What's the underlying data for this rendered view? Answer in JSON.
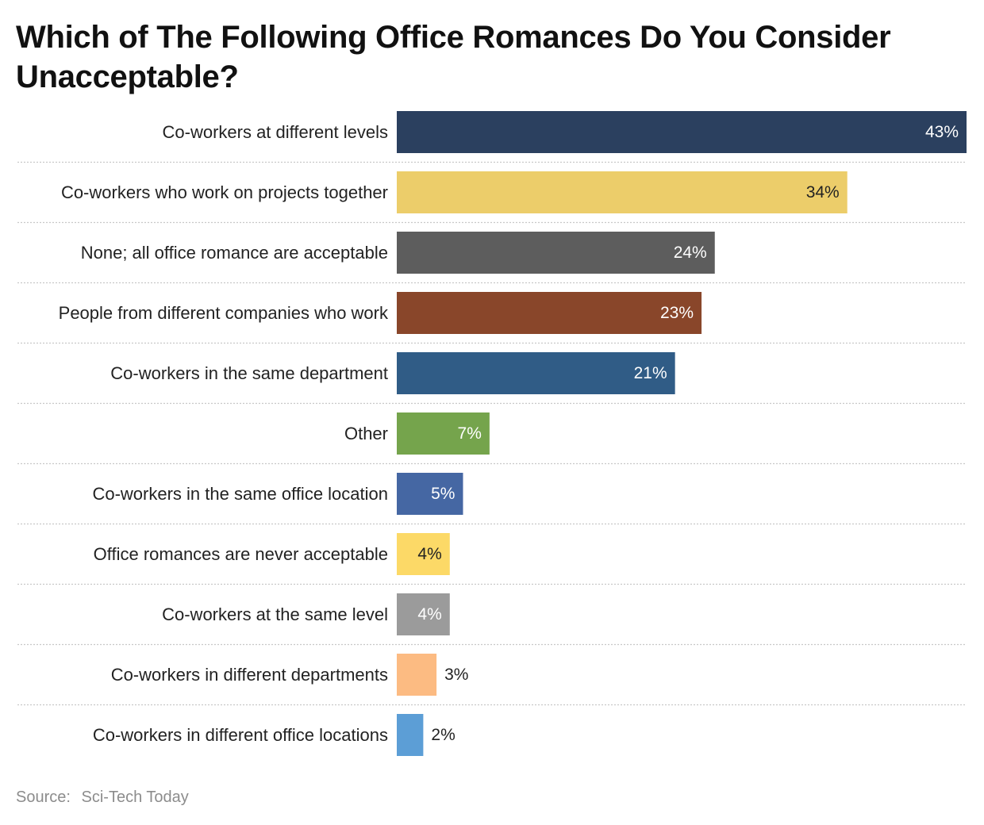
{
  "chart_data": {
    "type": "bar",
    "orientation": "horizontal",
    "title": "Which of The Following Office Romances Do You Consider Unacceptable?",
    "xlabel": "",
    "ylabel": "",
    "xlim": [
      0,
      43
    ],
    "value_suffix": "%",
    "grid": false,
    "categories": [
      "Co-workers at different levels",
      "Co-workers who work on projects together",
      "None; all office romance are acceptable",
      "People from different companies who work",
      "Co-workers in the same department",
      "Other",
      "Co-workers in the same office location",
      "Office romances are never acceptable",
      "Co-workers at the same level",
      "Co-workers in different departments",
      "Co-workers in different office locations"
    ],
    "values": [
      43,
      34,
      24,
      23,
      21,
      7,
      5,
      4,
      4,
      3,
      2
    ],
    "colors": [
      "#2b405f",
      "#eccd6a",
      "#5d5d5d",
      "#89462a",
      "#305c86",
      "#75a44c",
      "#4567a3",
      "#fcd967",
      "#9b9b9b",
      "#fcbb82",
      "#5c9ed6"
    ],
    "label_colors": [
      "#ffffff",
      "#222222",
      "#ffffff",
      "#ffffff",
      "#ffffff",
      "#ffffff",
      "#ffffff",
      "#222222",
      "#ffffff",
      "#222222",
      "#222222"
    ],
    "label_inside": [
      true,
      true,
      true,
      true,
      true,
      true,
      true,
      true,
      true,
      false,
      false
    ]
  },
  "source": {
    "label": "Source:",
    "value": "Sci-Tech Today"
  }
}
